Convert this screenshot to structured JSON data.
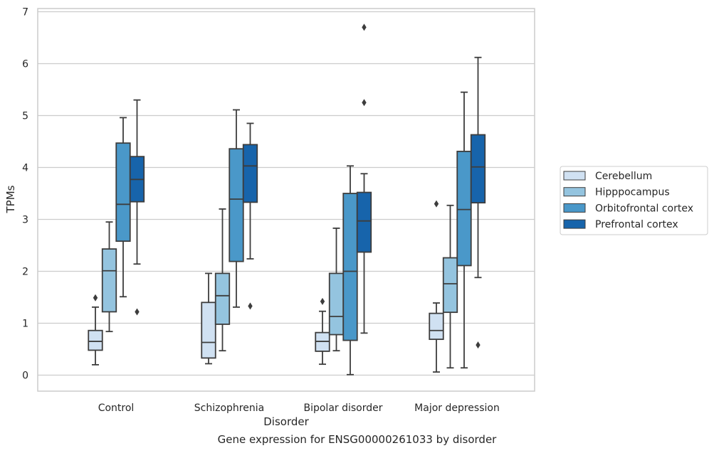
{
  "caption": "Gene expression for ENSG00000261033 by disorder",
  "chart_data": {
    "type": "box",
    "xlabel": "Disorder",
    "ylabel": "TPMs",
    "ylim": [
      -0.3,
      7.05
    ],
    "yticks": [
      0,
      1,
      2,
      3,
      4,
      5,
      6,
      7
    ],
    "grid": "horizontal",
    "legend_placement": "right",
    "categories": [
      "Control",
      "Schizophrenia",
      "Bipolar disorder",
      "Major depression"
    ],
    "series": [
      {
        "name": "Cerebellum",
        "color": "#d0e1f2",
        "boxes": [
          {
            "whisker_low": 0.2,
            "q1": 0.48,
            "median": 0.65,
            "q3": 0.86,
            "whisker_high": 1.31,
            "outliers": [
              1.49
            ]
          },
          {
            "whisker_low": 0.22,
            "q1": 0.33,
            "median": 0.63,
            "q3": 1.4,
            "whisker_high": 1.96,
            "outliers": []
          },
          {
            "whisker_low": 0.21,
            "q1": 0.46,
            "median": 0.65,
            "q3": 0.82,
            "whisker_high": 1.23,
            "outliers": [
              1.42
            ]
          },
          {
            "whisker_low": 0.06,
            "q1": 0.69,
            "median": 0.86,
            "q3": 1.19,
            "whisker_high": 1.39,
            "outliers": [
              3.3
            ]
          }
        ]
      },
      {
        "name": "Hipppocampus",
        "color": "#94c4df",
        "boxes": [
          {
            "whisker_low": 0.84,
            "q1": 1.22,
            "median": 2.01,
            "q3": 2.43,
            "whisker_high": 2.95,
            "outliers": []
          },
          {
            "whisker_low": 0.47,
            "q1": 0.98,
            "median": 1.53,
            "q3": 1.96,
            "whisker_high": 3.2,
            "outliers": []
          },
          {
            "whisker_low": 0.47,
            "q1": 0.78,
            "median": 1.13,
            "q3": 1.96,
            "whisker_high": 2.83,
            "outliers": []
          },
          {
            "whisker_low": 0.14,
            "q1": 1.21,
            "median": 1.76,
            "q3": 2.26,
            "whisker_high": 3.27,
            "outliers": []
          }
        ]
      },
      {
        "name": "Orbitofrontal cortex",
        "color": "#4a98c9",
        "boxes": [
          {
            "whisker_low": 1.51,
            "q1": 2.58,
            "median": 3.29,
            "q3": 4.47,
            "whisker_high": 4.96,
            "outliers": []
          },
          {
            "whisker_low": 1.31,
            "q1": 2.19,
            "median": 3.39,
            "q3": 4.36,
            "whisker_high": 5.11,
            "outliers": []
          },
          {
            "whisker_low": 0.01,
            "q1": 0.67,
            "median": 2.0,
            "q3": 3.5,
            "whisker_high": 4.03,
            "outliers": []
          },
          {
            "whisker_low": 0.14,
            "q1": 2.11,
            "median": 3.19,
            "q3": 4.31,
            "whisker_high": 5.45,
            "outliers": []
          }
        ]
      },
      {
        "name": "Prefrontal cortex",
        "color": "#1764ab",
        "boxes": [
          {
            "whisker_low": 2.14,
            "q1": 3.34,
            "median": 3.77,
            "q3": 4.21,
            "whisker_high": 5.3,
            "outliers": [
              1.22
            ]
          },
          {
            "whisker_low": 2.24,
            "q1": 3.33,
            "median": 4.03,
            "q3": 4.44,
            "whisker_high": 4.85,
            "outliers": [
              1.33
            ]
          },
          {
            "whisker_low": 0.81,
            "q1": 2.37,
            "median": 2.97,
            "q3": 3.52,
            "whisker_high": 3.88,
            "outliers": [
              5.25,
              6.7
            ]
          },
          {
            "whisker_low": 1.88,
            "q1": 3.32,
            "median": 4.01,
            "q3": 4.63,
            "whisker_high": 6.12,
            "outliers": [
              0.58
            ]
          }
        ]
      }
    ]
  }
}
